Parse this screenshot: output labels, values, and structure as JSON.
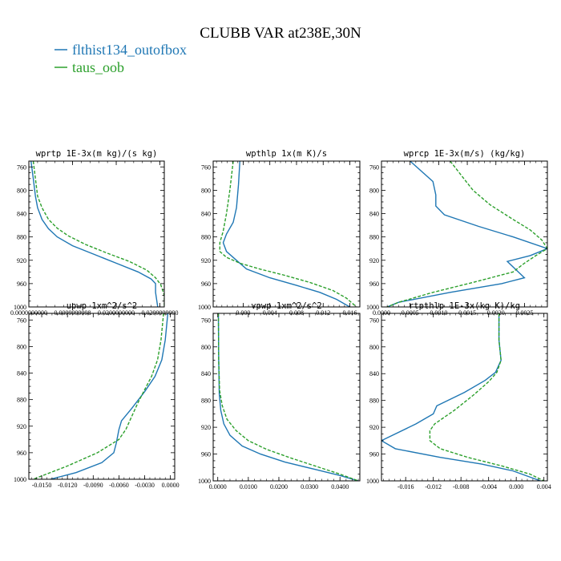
{
  "figure": {
    "title": "CLUBB VAR at238E,30N",
    "legend": [
      {
        "label": "flthist134_outofbox",
        "color": "#1f77b4",
        "dash": "solid"
      },
      {
        "label": "taus_oob",
        "color": "#2ca02c",
        "dash": "dashed"
      }
    ]
  },
  "chart_data": [
    {
      "type": "line",
      "title": "wprtp  1E-3x(m kg)/(s kg)",
      "xlim": [
        0.0,
        0.031
      ],
      "ylim": [
        1000,
        750
      ],
      "xticks": [
        0.0,
        0.01,
        0.02,
        0.03
      ],
      "xtick_labels": [
        "0.0000000000",
        "0.0099999998",
        "0.0200000000",
        "0.0299999990"
      ],
      "yticks": [
        760,
        800,
        840,
        880,
        920,
        960,
        1000
      ],
      "grid": false,
      "series": [
        {
          "name": "flthist134_outofbox",
          "color": "#1f77b4",
          "x": [
            0.0005,
            0.001,
            0.0015,
            0.002,
            0.003,
            0.0045,
            0.0065,
            0.01,
            0.015,
            0.02,
            0.025,
            0.028,
            0.029,
            0.029,
            0.0295
          ],
          "y": [
            750,
            780,
            810,
            830,
            850,
            866,
            880,
            895,
            910,
            925,
            940,
            952,
            960,
            975,
            1000
          ]
        },
        {
          "name": "taus_oob",
          "color": "#2ca02c",
          "x": [
            0.001,
            0.0015,
            0.002,
            0.003,
            0.0045,
            0.0065,
            0.009,
            0.013,
            0.018,
            0.023,
            0.027,
            0.029,
            0.0302,
            0.031,
            0.031
          ],
          "y": [
            750,
            780,
            810,
            830,
            850,
            865,
            878,
            893,
            908,
            922,
            937,
            950,
            962,
            980,
            1000
          ]
        }
      ]
    },
    {
      "type": "line",
      "title": "wpthlp  1x(m K)/s",
      "xlim": [
        -0.0045,
        0.0175
      ],
      "ylim": [
        1000,
        750
      ],
      "xticks": [
        0.0,
        0.004,
        0.008,
        0.012,
        0.016
      ],
      "xtick_labels": [
        "0.000",
        "0.004",
        "0.008",
        "0.012",
        "0.016"
      ],
      "yticks": [
        760,
        800,
        840,
        880,
        920,
        960,
        1000
      ],
      "grid": false,
      "series": [
        {
          "name": "flthist134_outofbox",
          "color": "#1f77b4",
          "x": [
            -0.0005,
            -0.0007,
            -0.001,
            -0.0015,
            -0.0025,
            -0.003,
            -0.0025,
            -0.001,
            0.0005,
            0.004,
            0.008,
            0.0115,
            0.014,
            0.016
          ],
          "y": [
            750,
            790,
            830,
            855,
            875,
            890,
            905,
            920,
            935,
            950,
            963,
            975,
            987,
            1000
          ]
        },
        {
          "name": "taus_oob",
          "color": "#2ca02c",
          "x": [
            -0.0015,
            -0.002,
            -0.0025,
            -0.003,
            -0.0035,
            -0.0035,
            -0.0025,
            -0.0005,
            0.0025,
            0.006,
            0.01,
            0.0135,
            0.0155,
            0.017
          ],
          "y": [
            750,
            800,
            840,
            870,
            890,
            905,
            915,
            925,
            935,
            945,
            958,
            972,
            985,
            1000
          ]
        }
      ]
    },
    {
      "type": "line",
      "title": "wprcp  1E-3x(m/s) (kg/kg)",
      "xlim": [
        0.0,
        0.0029
      ],
      "ylim": [
        1000,
        750
      ],
      "xticks": [
        0.0,
        0.0005,
        0.001,
        0.0015,
        0.002,
        0.0025
      ],
      "xtick_labels": [
        "0.0000",
        "0.0005",
        "0.0010",
        "0.0015",
        "0.0020",
        "0.0025"
      ],
      "yticks": [
        760,
        800,
        840,
        880,
        920,
        960,
        1000
      ],
      "grid": false,
      "series": [
        {
          "name": "flthist134_outofbox",
          "color": "#1f77b4",
          "x": [
            0.0005,
            0.0009,
            0.00095,
            0.00095,
            0.0011,
            0.0017,
            0.0023,
            0.0029,
            0.0026,
            0.0022,
            0.0025,
            0.0021,
            0.0012,
            0.0003,
            0.0001
          ],
          "y": [
            750,
            785,
            808,
            827,
            842,
            862,
            880,
            900,
            912,
            922,
            950,
            960,
            975,
            992,
            1000
          ]
        },
        {
          "name": "taus_oob",
          "color": "#2ca02c",
          "x": [
            0.0012,
            0.0014,
            0.0016,
            0.0019,
            0.0023,
            0.0026,
            0.0028,
            0.0029,
            0.0027,
            0.0025,
            0.0023,
            0.0016,
            0.0009,
            0.0003,
            0.0001
          ],
          "y": [
            750,
            775,
            800,
            825,
            850,
            868,
            885,
            900,
            912,
            925,
            940,
            958,
            975,
            992,
            1000
          ]
        }
      ]
    },
    {
      "type": "line",
      "title": "upwp  1xm^2/s^2",
      "xlim": [
        -0.0165,
        0.0005
      ],
      "ylim": [
        1000,
        750
      ],
      "xticks": [
        -0.015,
        -0.012,
        -0.009,
        -0.006,
        -0.003,
        0.0
      ],
      "xtick_labels": [
        "-0.0150",
        "-0.0120",
        "-0.0090",
        "-0.0060",
        "-0.0030",
        "0.0000"
      ],
      "yticks": [
        760,
        800,
        840,
        880,
        920,
        960,
        1000
      ],
      "grid": false,
      "series": [
        {
          "name": "flthist134_outofbox",
          "color": "#1f77b4",
          "x": [
            -0.0003,
            -0.0006,
            -0.001,
            -0.0018,
            -0.003,
            -0.0045,
            -0.0057,
            -0.006,
            -0.0063,
            -0.0066,
            -0.008,
            -0.011,
            -0.014
          ],
          "y": [
            750,
            790,
            820,
            845,
            868,
            893,
            912,
            925,
            945,
            960,
            975,
            990,
            1000
          ]
        },
        {
          "name": "taus_oob",
          "color": "#2ca02c",
          "x": [
            -0.0008,
            -0.0011,
            -0.0015,
            -0.0022,
            -0.003,
            -0.0038,
            -0.0045,
            -0.0052,
            -0.006,
            -0.0085,
            -0.012,
            -0.016
          ],
          "y": [
            750,
            790,
            820,
            845,
            865,
            885,
            905,
            925,
            940,
            960,
            980,
            1000
          ]
        }
      ]
    },
    {
      "type": "line",
      "title": "vpwp  1xm^2/s^2",
      "xlim": [
        -0.0015,
        0.0465
      ],
      "ylim": [
        1000,
        750
      ],
      "xticks": [
        0.0,
        0.01,
        0.02,
        0.03,
        0.04
      ],
      "xtick_labels": [
        "0.0000",
        "0.0100",
        "0.0200",
        "0.0300",
        "0.0400"
      ],
      "yticks": [
        760,
        800,
        840,
        880,
        920,
        960,
        1000
      ],
      "grid": false,
      "series": [
        {
          "name": "flthist134_outofbox",
          "color": "#1f77b4",
          "x": [
            0.0002,
            0.0003,
            0.0005,
            0.001,
            0.002,
            0.004,
            0.008,
            0.014,
            0.022,
            0.032,
            0.04,
            0.046
          ],
          "y": [
            750,
            820,
            870,
            895,
            915,
            932,
            948,
            960,
            972,
            983,
            992,
            1000
          ]
        },
        {
          "name": "taus_oob",
          "color": "#2ca02c",
          "x": [
            0.0002,
            0.0003,
            0.0006,
            0.0015,
            0.003,
            0.006,
            0.01,
            0.016,
            0.024,
            0.032,
            0.04,
            0.046
          ],
          "y": [
            750,
            820,
            865,
            888,
            908,
            925,
            940,
            953,
            966,
            978,
            990,
            1000
          ]
        }
      ]
    },
    {
      "type": "line",
      "title": "rtpthlp  1E-3x(kg K)/kg",
      "xlim": [
        -0.0195,
        0.0045
      ],
      "ylim": [
        1000,
        750
      ],
      "xticks": [
        -0.016,
        -0.012,
        -0.008,
        -0.004,
        0.0,
        0.004
      ],
      "xtick_labels": [
        "-0.016",
        "-0.012",
        "-0.008",
        "-0.004",
        "0.000",
        "0.004"
      ],
      "yticks": [
        760,
        800,
        840,
        880,
        920,
        960,
        1000
      ],
      "grid": false,
      "series": [
        {
          "name": "flthist134_outofbox",
          "color": "#1f77b4",
          "x": [
            -0.0025,
            -0.0025,
            -0.0022,
            -0.003,
            -0.0045,
            -0.0075,
            -0.0115,
            -0.012,
            -0.0145,
            -0.0195,
            -0.0175,
            -0.011,
            -0.005,
            -0.0005,
            0.0035
          ],
          "y": [
            750,
            790,
            820,
            838,
            850,
            868,
            888,
            900,
            915,
            940,
            952,
            965,
            975,
            985,
            1000
          ]
        },
        {
          "name": "taus_oob",
          "color": "#2ca02c",
          "x": [
            -0.0025,
            -0.0025,
            -0.0022,
            -0.0028,
            -0.004,
            -0.0062,
            -0.009,
            -0.0118,
            -0.0125,
            -0.0125,
            -0.011,
            -0.007,
            -0.002,
            0.002,
            0.004
          ],
          "y": [
            750,
            790,
            820,
            838,
            852,
            872,
            895,
            915,
            925,
            940,
            952,
            965,
            978,
            990,
            1000
          ]
        }
      ]
    }
  ]
}
